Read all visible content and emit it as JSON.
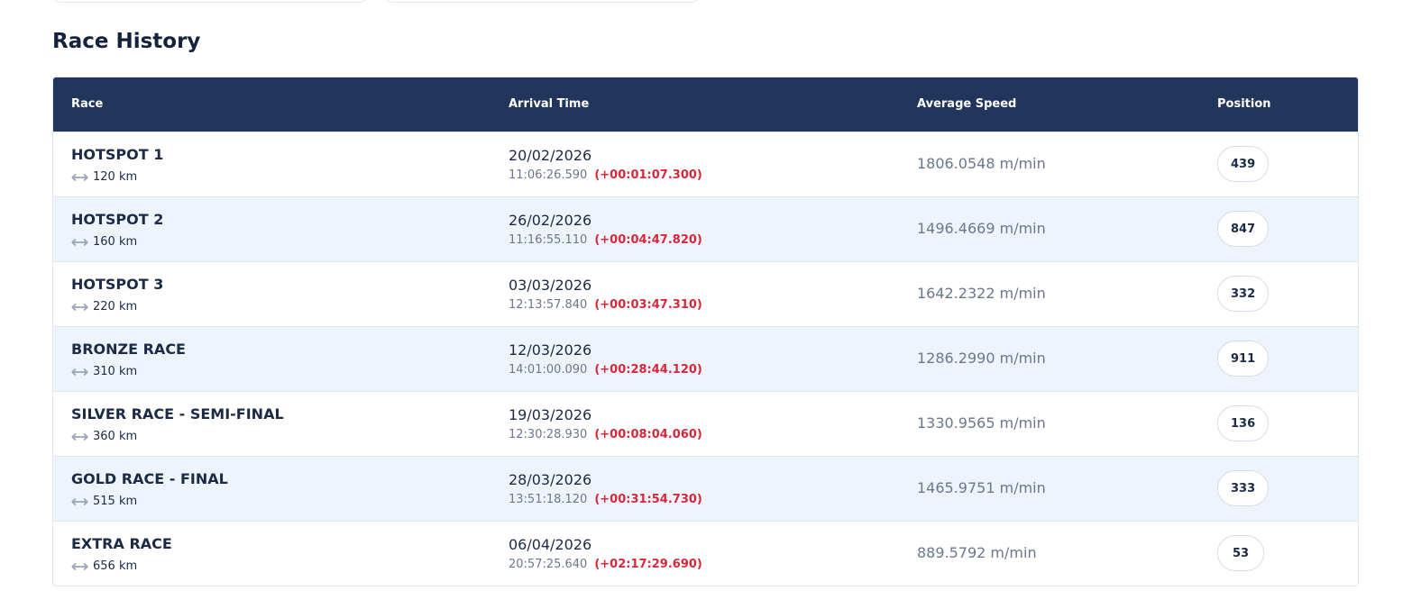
{
  "header": {
    "title": "Race History"
  },
  "table": {
    "columns": [
      "Race",
      "Arrival Time",
      "Average Speed",
      "Position"
    ],
    "rows": [
      {
        "race": "HOTSPOT 1",
        "distance": "120 km",
        "date": "20/02/2026",
        "time": "11:06:26.590",
        "delta": "(+00:01:07.300)",
        "speed": "1806.0548 m/min",
        "position": "439"
      },
      {
        "race": "HOTSPOT 2",
        "distance": "160 km",
        "date": "26/02/2026",
        "time": "11:16:55.110",
        "delta": "(+00:04:47.820)",
        "speed": "1496.4669 m/min",
        "position": "847"
      },
      {
        "race": "HOTSPOT 3",
        "distance": "220 km",
        "date": "03/03/2026",
        "time": "12:13:57.840",
        "delta": "(+00:03:47.310)",
        "speed": "1642.2322 m/min",
        "position": "332"
      },
      {
        "race": "BRONZE RACE",
        "distance": "310 km",
        "date": "12/03/2026",
        "time": "14:01:00.090",
        "delta": "(+00:28:44.120)",
        "speed": "1286.2990 m/min",
        "position": "911"
      },
      {
        "race": "SILVER RACE - SEMI-FINAL",
        "distance": "360 km",
        "date": "19/03/2026",
        "time": "12:30:28.930",
        "delta": "(+00:08:04.060)",
        "speed": "1330.9565 m/min",
        "position": "136"
      },
      {
        "race": "GOLD RACE - FINAL",
        "distance": "515 km",
        "date": "28/03/2026",
        "time": "13:51:18.120",
        "delta": "(+00:31:54.730)",
        "speed": "1465.9751 m/min",
        "position": "333"
      },
      {
        "race": "EXTRA RACE",
        "distance": "656 km",
        "date": "06/04/2026",
        "time": "20:57:25.640",
        "delta": "(+02:17:29.690)",
        "speed": "889.5792 m/min",
        "position": "53"
      }
    ]
  }
}
